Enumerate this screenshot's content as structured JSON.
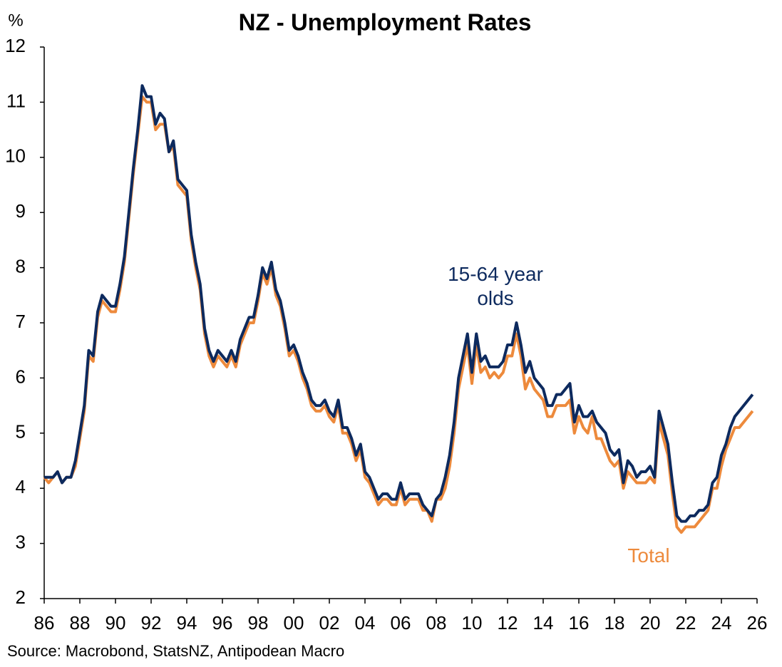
{
  "chart_data": {
    "type": "line",
    "title": "NZ - Unemployment Rates",
    "y_unit": "%",
    "source": "Source: Macrobond, StatsNZ, Antipodean Macro",
    "x": [
      1986,
      1986.25,
      1986.5,
      1986.75,
      1987,
      1987.25,
      1987.5,
      1987.75,
      1988,
      1988.25,
      1988.5,
      1988.75,
      1989,
      1989.25,
      1989.5,
      1989.75,
      1990,
      1990.25,
      1990.5,
      1990.75,
      1991,
      1991.25,
      1991.5,
      1991.75,
      1992,
      1992.25,
      1992.5,
      1992.75,
      1993,
      1993.25,
      1993.5,
      1993.75,
      1994,
      1994.25,
      1994.5,
      1994.75,
      1995,
      1995.25,
      1995.5,
      1995.75,
      1996,
      1996.25,
      1996.5,
      1996.75,
      1997,
      1997.25,
      1997.5,
      1997.75,
      1998,
      1998.25,
      1998.5,
      1998.75,
      1999,
      1999.25,
      1999.5,
      1999.75,
      2000,
      2000.25,
      2000.5,
      2000.75,
      2001,
      2001.25,
      2001.5,
      2001.75,
      2002,
      2002.25,
      2002.5,
      2002.75,
      2003,
      2003.25,
      2003.5,
      2003.75,
      2004,
      2004.25,
      2004.5,
      2004.75,
      2005,
      2005.25,
      2005.5,
      2005.75,
      2006,
      2006.25,
      2006.5,
      2006.75,
      2007,
      2007.25,
      2007.5,
      2007.75,
      2008,
      2008.25,
      2008.5,
      2008.75,
      2009,
      2009.25,
      2009.5,
      2009.75,
      2010,
      2010.25,
      2010.5,
      2010.75,
      2011,
      2011.25,
      2011.5,
      2011.75,
      2012,
      2012.25,
      2012.5,
      2012.75,
      2013,
      2013.25,
      2013.5,
      2013.75,
      2014,
      2014.25,
      2014.5,
      2014.75,
      2015,
      2015.25,
      2015.5,
      2015.75,
      2016,
      2016.25,
      2016.5,
      2016.75,
      2017,
      2017.25,
      2017.5,
      2017.75,
      2018,
      2018.25,
      2018.5,
      2018.75,
      2019,
      2019.25,
      2019.5,
      2019.75,
      2020,
      2020.25,
      2020.5,
      2020.75,
      2021,
      2021.25,
      2021.5,
      2021.75,
      2022,
      2022.25,
      2022.5,
      2022.75,
      2023,
      2023.25,
      2023.5,
      2023.75,
      2024,
      2024.25,
      2024.5,
      2024.75,
      2025,
      2025.25,
      2025.5,
      2025.75
    ],
    "series": [
      {
        "name": "Total",
        "color": "#ed8a3c",
        "values": [
          4.2,
          4.1,
          4.2,
          4.3,
          4.1,
          4.2,
          4.2,
          4.4,
          4.9,
          5.4,
          6.4,
          6.3,
          7.1,
          7.4,
          7.3,
          7.2,
          7.2,
          7.6,
          8.1,
          8.9,
          9.7,
          10.4,
          11.1,
          11.0,
          11.0,
          10.5,
          10.6,
          10.6,
          10.1,
          10.2,
          9.5,
          9.4,
          9.3,
          8.5,
          8.0,
          7.6,
          6.8,
          6.4,
          6.2,
          6.4,
          6.3,
          6.2,
          6.4,
          6.2,
          6.6,
          6.8,
          7.0,
          7.0,
          7.4,
          7.9,
          7.7,
          8.0,
          7.5,
          7.3,
          6.9,
          6.4,
          6.5,
          6.3,
          6.0,
          5.8,
          5.5,
          5.4,
          5.4,
          5.5,
          5.3,
          5.2,
          5.5,
          5.0,
          5.0,
          4.8,
          4.5,
          4.7,
          4.2,
          4.1,
          3.9,
          3.7,
          3.8,
          3.8,
          3.7,
          3.7,
          4.0,
          3.7,
          3.8,
          3.8,
          3.8,
          3.6,
          3.6,
          3.4,
          3.8,
          3.8,
          4.0,
          4.4,
          5.0,
          5.8,
          6.2,
          6.6,
          5.9,
          6.6,
          6.1,
          6.2,
          6.0,
          6.1,
          6.0,
          6.1,
          6.4,
          6.4,
          6.8,
          6.4,
          5.8,
          6.0,
          5.8,
          5.7,
          5.6,
          5.3,
          5.3,
          5.5,
          5.5,
          5.5,
          5.6,
          5.0,
          5.3,
          5.1,
          5.0,
          5.3,
          4.9,
          4.9,
          4.7,
          4.5,
          4.4,
          4.5,
          4.0,
          4.3,
          4.2,
          4.1,
          4.1,
          4.1,
          4.2,
          4.1,
          5.2,
          4.9,
          4.6,
          3.9,
          3.3,
          3.2,
          3.3,
          3.3,
          3.3,
          3.4,
          3.5,
          3.6,
          4.0,
          4.0,
          4.4,
          4.7,
          4.9,
          5.1,
          5.1,
          5.2,
          5.3,
          5.4
        ]
      },
      {
        "name": "15-64 year olds",
        "color": "#0d2a5e",
        "values": [
          4.2,
          4.2,
          4.2,
          4.3,
          4.1,
          4.2,
          4.2,
          4.5,
          5.0,
          5.5,
          6.5,
          6.4,
          7.2,
          7.5,
          7.4,
          7.3,
          7.3,
          7.7,
          8.2,
          9.0,
          9.8,
          10.5,
          11.3,
          11.1,
          11.1,
          10.6,
          10.8,
          10.7,
          10.1,
          10.3,
          9.6,
          9.5,
          9.4,
          8.6,
          8.1,
          7.7,
          6.9,
          6.5,
          6.3,
          6.5,
          6.4,
          6.3,
          6.5,
          6.3,
          6.7,
          6.9,
          7.1,
          7.1,
          7.5,
          8.0,
          7.8,
          8.1,
          7.6,
          7.4,
          7.0,
          6.5,
          6.6,
          6.4,
          6.1,
          5.9,
          5.6,
          5.5,
          5.5,
          5.6,
          5.4,
          5.3,
          5.6,
          5.1,
          5.1,
          4.9,
          4.6,
          4.8,
          4.3,
          4.2,
          4.0,
          3.8,
          3.9,
          3.9,
          3.8,
          3.8,
          4.1,
          3.8,
          3.9,
          3.9,
          3.9,
          3.7,
          3.6,
          3.5,
          3.8,
          3.9,
          4.2,
          4.6,
          5.2,
          6.0,
          6.4,
          6.8,
          6.1,
          6.8,
          6.3,
          6.4,
          6.2,
          6.2,
          6.2,
          6.3,
          6.6,
          6.6,
          7.0,
          6.6,
          6.1,
          6.3,
          6.0,
          5.9,
          5.8,
          5.5,
          5.5,
          5.7,
          5.7,
          5.8,
          5.9,
          5.2,
          5.5,
          5.3,
          5.3,
          5.4,
          5.2,
          5.1,
          5.0,
          4.7,
          4.6,
          4.7,
          4.1,
          4.5,
          4.4,
          4.2,
          4.3,
          4.3,
          4.4,
          4.2,
          5.4,
          5.1,
          4.8,
          4.1,
          3.5,
          3.4,
          3.4,
          3.5,
          3.5,
          3.6,
          3.6,
          3.7,
          4.1,
          4.2,
          4.6,
          4.8,
          5.1,
          5.3,
          5.4,
          5.5,
          5.6,
          5.7
        ]
      }
    ],
    "xlim": [
      1986,
      2026
    ],
    "xticks": [
      {
        "value": 1986,
        "label": "86"
      },
      {
        "value": 1988,
        "label": "88"
      },
      {
        "value": 1990,
        "label": "90"
      },
      {
        "value": 1992,
        "label": "92"
      },
      {
        "value": 1994,
        "label": "94"
      },
      {
        "value": 1996,
        "label": "96"
      },
      {
        "value": 1998,
        "label": "98"
      },
      {
        "value": 2000,
        "label": "00"
      },
      {
        "value": 2002,
        "label": "02"
      },
      {
        "value": 2004,
        "label": "04"
      },
      {
        "value": 2006,
        "label": "06"
      },
      {
        "value": 2008,
        "label": "08"
      },
      {
        "value": 2010,
        "label": "10"
      },
      {
        "value": 2012,
        "label": "12"
      },
      {
        "value": 2014,
        "label": "14"
      },
      {
        "value": 2016,
        "label": "16"
      },
      {
        "value": 2018,
        "label": "18"
      },
      {
        "value": 2020,
        "label": "20"
      },
      {
        "value": 2022,
        "label": "22"
      },
      {
        "value": 2024,
        "label": "24"
      },
      {
        "value": 2026,
        "label": "26"
      }
    ],
    "ylim": [
      2,
      12
    ],
    "yticks": [
      2,
      3,
      4,
      5,
      6,
      7,
      8,
      9,
      10,
      11,
      12
    ],
    "grid": false
  }
}
